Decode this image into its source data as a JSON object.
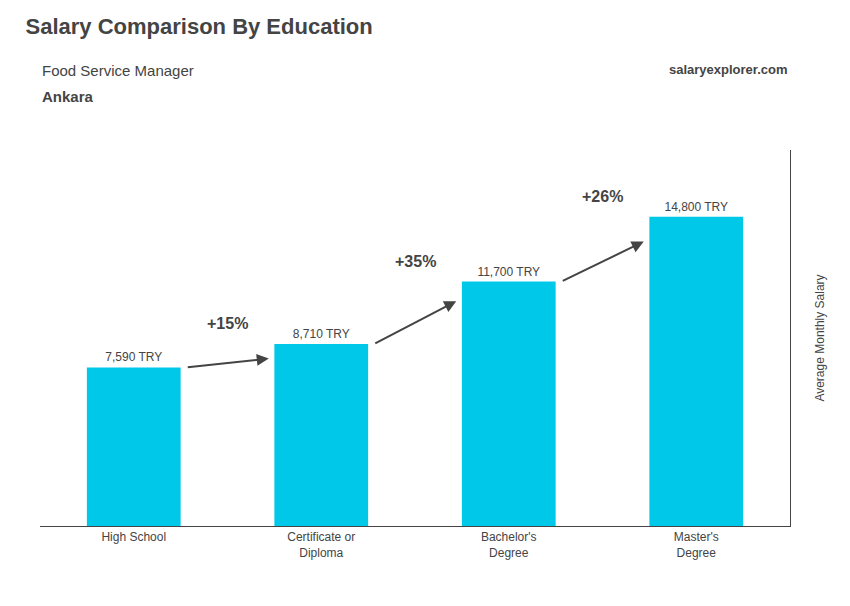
{
  "chart_data": {
    "type": "bar",
    "title": "Salary Comparison By Education",
    "subtitle": "Food Service Manager",
    "annotations": [
      {
        "text": "Ankara"
      },
      {
        "text": "salaryexplorer.com"
      },
      {
        "text": "+15%",
        "from": "High School",
        "to": "Certificate or\nDiploma"
      },
      {
        "text": "+35%",
        "from": "Certificate or\nDiploma",
        "to": "Bachelor's\nDegree"
      },
      {
        "text": "+26%",
        "from": "Bachelor's\nDegree",
        "to": "Master's\nDegree"
      }
    ],
    "categories": [
      "High School",
      "Certificate or\nDiploma",
      "Bachelor's\nDegree",
      "Master's\nDegree"
    ],
    "values": [
      7590,
      8710,
      11700,
      14800
    ],
    "value_labels": [
      "7,590 TRY",
      "8,710 TRY",
      "11,700 TRY",
      "14,800 TRY"
    ],
    "data_labels": true,
    "color": "#00c8e8",
    "ylabel": "Average Monthly Salary",
    "ylim": [
      0,
      18000
    ],
    "tick_labels": "x",
    "grid": false
  }
}
